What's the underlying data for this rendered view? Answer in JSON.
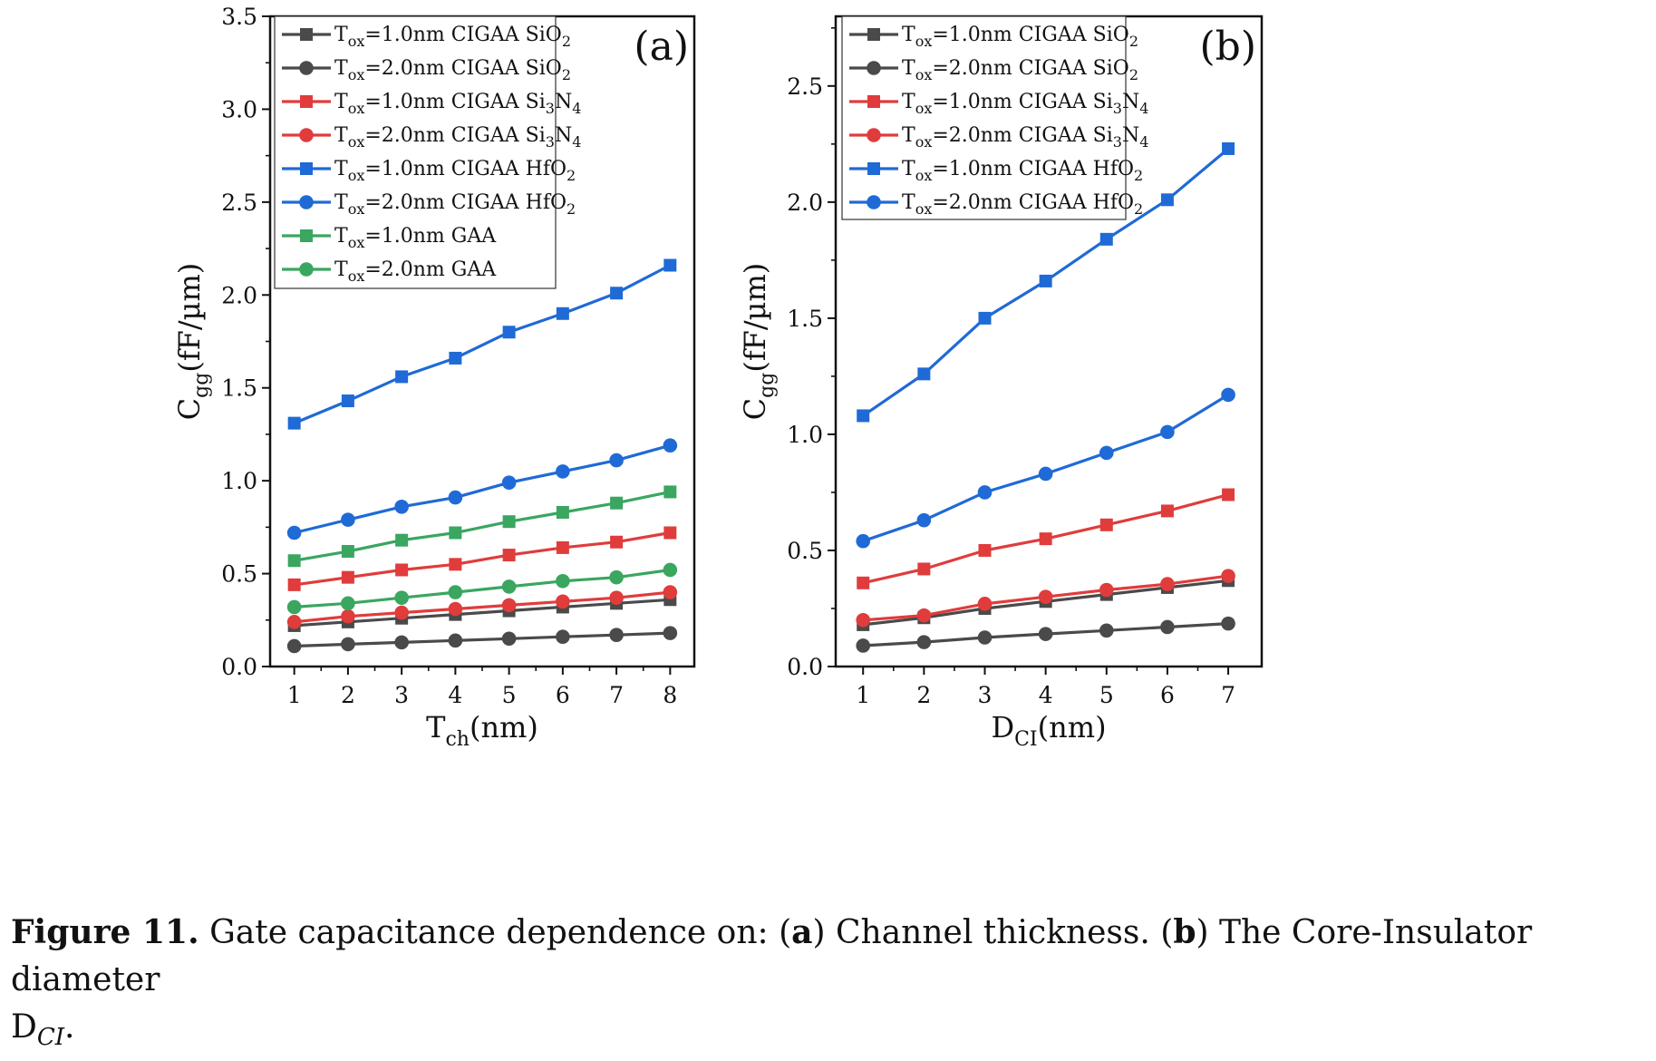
{
  "figure": {
    "caption_label": "Figure 11.",
    "caption_text_1": " Gate capacitance dependence on: (",
    "caption_a": "a",
    "caption_text_2": ") Channel thickness. (",
    "caption_b": "b",
    "caption_text_3": ") The Core-Insulator diameter",
    "caption_line2_main": "D",
    "caption_line2_sub": "CI",
    "caption_line2_end": "."
  },
  "colors": {
    "gray": "#4a4a4a",
    "red": "#e03c3c",
    "blue": "#1f6ad6",
    "green": "#3aa660"
  },
  "chart_data": [
    {
      "id": "a",
      "type": "line",
      "panel_label": "(a)",
      "xlabel": {
        "main": "T",
        "sub": "ch",
        "rest": "(nm)"
      },
      "ylabel": {
        "main": "C",
        "sub": "gg",
        "rest": "(fF/µm)"
      },
      "xlim": [
        0.55,
        8.45
      ],
      "ylim": [
        0,
        3.5
      ],
      "xticks": [
        1,
        2,
        3,
        4,
        5,
        6,
        7,
        8
      ],
      "yticks": [
        0.0,
        0.5,
        1.0,
        1.5,
        2.0,
        2.5,
        3.0,
        3.5
      ],
      "ytick_labels": [
        "0.0",
        "0.5",
        "1.0",
        "1.5",
        "2.0",
        "2.5",
        "3.0",
        "3.5"
      ],
      "x": [
        1,
        2,
        3,
        4,
        5,
        6,
        7,
        8
      ],
      "legend_position": "top-left",
      "series": [
        {
          "name": "T_ox=1.0nm CIGAA SiO_2",
          "main": "T",
          "sub1": "ox",
          "text": "=1.0nm CIGAA SiO",
          "sub2": "2",
          "color": "gray",
          "marker": "square",
          "values": [
            0.22,
            0.24,
            0.26,
            0.28,
            0.3,
            0.32,
            0.34,
            0.36
          ]
        },
        {
          "name": "T_ox=2.0nm CIGAA SiO_2",
          "main": "T",
          "sub1": "ox",
          "text": "=2.0nm CIGAA SiO",
          "sub2": "2",
          "color": "gray",
          "marker": "circle",
          "values": [
            0.11,
            0.12,
            0.13,
            0.14,
            0.15,
            0.16,
            0.17,
            0.18
          ]
        },
        {
          "name": "T_ox=1.0nm CIGAA Si_3N_4",
          "main": "T",
          "sub1": "ox",
          "text": "=1.0nm CIGAA Si",
          "sub2": "3",
          "text2": "N",
          "sub3": "4",
          "color": "red",
          "marker": "square",
          "values": [
            0.44,
            0.48,
            0.52,
            0.55,
            0.6,
            0.64,
            0.67,
            0.72
          ]
        },
        {
          "name": "T_ox=2.0nm CIGAA Si_3N_4",
          "main": "T",
          "sub1": "ox",
          "text": "=2.0nm CIGAA Si",
          "sub2": "3",
          "text2": "N",
          "sub3": "4",
          "color": "red",
          "marker": "circle",
          "values": [
            0.24,
            0.27,
            0.29,
            0.31,
            0.33,
            0.35,
            0.37,
            0.4
          ]
        },
        {
          "name": "T_ox=1.0nm CIGAA HfO_2",
          "main": "T",
          "sub1": "ox",
          "text": "=1.0nm CIGAA HfO",
          "sub2": "2",
          "color": "blue",
          "marker": "square",
          "values": [
            1.31,
            1.43,
            1.56,
            1.66,
            1.8,
            1.9,
            2.01,
            2.16
          ]
        },
        {
          "name": "T_ox=2.0nm CIGAA HfO_2",
          "main": "T",
          "sub1": "ox",
          "text": "=2.0nm CIGAA HfO",
          "sub2": "2",
          "color": "blue",
          "marker": "circle",
          "values": [
            0.72,
            0.79,
            0.86,
            0.91,
            0.99,
            1.05,
            1.11,
            1.19
          ]
        },
        {
          "name": "T_ox=1.0nm GAA",
          "main": "T",
          "sub1": "ox",
          "text": "=1.0nm GAA",
          "color": "green",
          "marker": "square",
          "values": [
            0.57,
            0.62,
            0.68,
            0.72,
            0.78,
            0.83,
            0.88,
            0.94
          ]
        },
        {
          "name": "T_ox=2.0nm GAA",
          "main": "T",
          "sub1": "ox",
          "text": "=2.0nm GAA",
          "color": "green",
          "marker": "circle",
          "values": [
            0.32,
            0.34,
            0.37,
            0.4,
            0.43,
            0.46,
            0.48,
            0.52
          ]
        }
      ]
    },
    {
      "id": "b",
      "type": "line",
      "panel_label": "(b)",
      "xlabel": {
        "main": "D",
        "sub": "CI",
        "rest": "(nm)"
      },
      "ylabel": {
        "main": "C",
        "sub": "gg",
        "rest": "(fF/µm)"
      },
      "xlim": [
        0.55,
        7.55
      ],
      "ylim": [
        0,
        2.8
      ],
      "xticks": [
        1,
        2,
        3,
        4,
        5,
        6,
        7
      ],
      "yticks": [
        0.0,
        0.5,
        1.0,
        1.5,
        2.0,
        2.5
      ],
      "ytick_labels": [
        "0.0",
        "0.5",
        "1.0",
        "1.5",
        "2.0",
        "2.5"
      ],
      "x": [
        1,
        2,
        3,
        4,
        5,
        6,
        7
      ],
      "legend_position": "top-left",
      "series": [
        {
          "name": "T_ox=1.0nm CIGAA SiO_2",
          "main": "T",
          "sub1": "ox",
          "text": "=1.0nm CIGAA SiO",
          "sub2": "2",
          "color": "gray",
          "marker": "square",
          "values": [
            0.18,
            0.21,
            0.25,
            0.28,
            0.31,
            0.34,
            0.37
          ]
        },
        {
          "name": "T_ox=2.0nm CIGAA SiO_2",
          "main": "T",
          "sub1": "ox",
          "text": "=2.0nm CIGAA SiO",
          "sub2": "2",
          "color": "gray",
          "marker": "circle",
          "values": [
            0.09,
            0.105,
            0.125,
            0.14,
            0.155,
            0.17,
            0.185
          ]
        },
        {
          "name": "T_ox=1.0nm CIGAA Si_3N_4",
          "main": "T",
          "sub1": "ox",
          "text": "=1.0nm CIGAA Si",
          "sub2": "3",
          "text2": "N",
          "sub3": "4",
          "color": "red",
          "marker": "square",
          "values": [
            0.36,
            0.42,
            0.5,
            0.55,
            0.61,
            0.67,
            0.74
          ]
        },
        {
          "name": "T_ox=2.0nm CIGAA Si_3N_4",
          "main": "T",
          "sub1": "ox",
          "text": "=2.0nm CIGAA Si",
          "sub2": "3",
          "text2": "N",
          "sub3": "4",
          "color": "red",
          "marker": "circle",
          "values": [
            0.2,
            0.22,
            0.27,
            0.3,
            0.33,
            0.355,
            0.39
          ]
        },
        {
          "name": "T_ox=1.0nm CIGAA HfO_2",
          "main": "T",
          "sub1": "ox",
          "text": "=1.0nm CIGAA HfO",
          "sub2": "2",
          "color": "blue",
          "marker": "square",
          "values": [
            1.08,
            1.26,
            1.5,
            1.66,
            1.84,
            2.01,
            2.23
          ]
        },
        {
          "name": "T_ox=2.0nm CIGAA HfO_2",
          "main": "T",
          "sub1": "ox",
          "text": "=2.0nm CIGAA HfO",
          "sub2": "2",
          "color": "blue",
          "marker": "circle",
          "values": [
            0.54,
            0.63,
            0.75,
            0.83,
            0.92,
            1.01,
            1.17
          ]
        }
      ]
    }
  ]
}
